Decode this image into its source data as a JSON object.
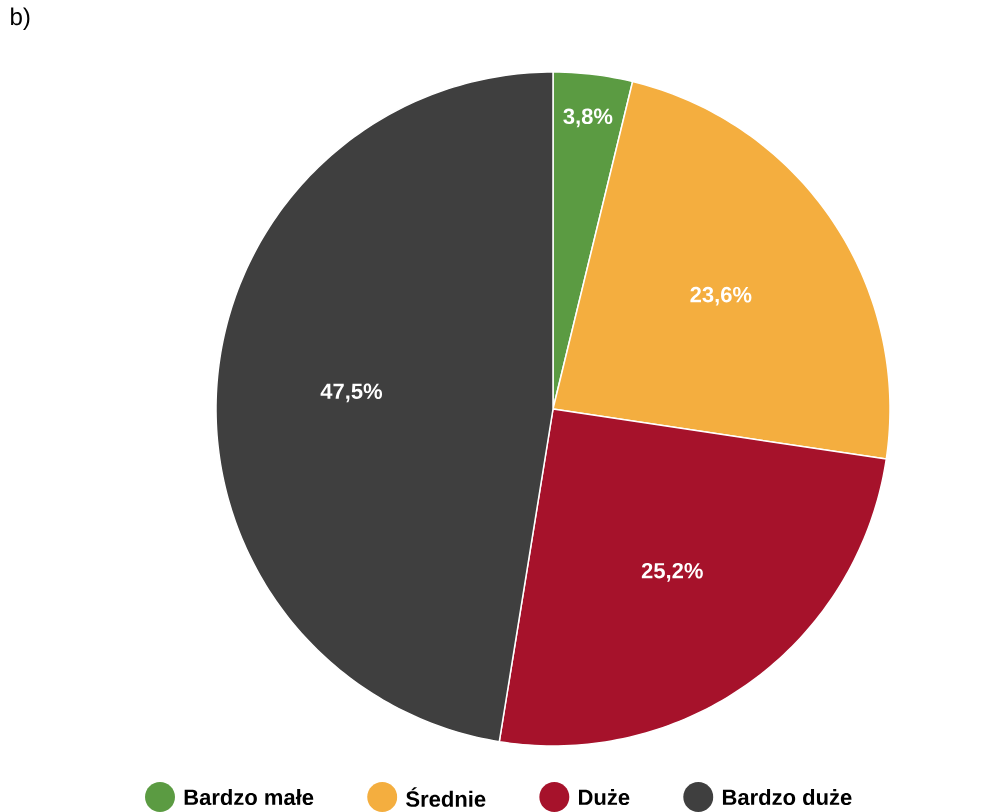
{
  "chart_data": {
    "type": "pie",
    "title": "b)",
    "categories": [
      "Bardzo małe",
      "Średnie",
      "Duże",
      "Bardzo duże"
    ],
    "values": [
      3.8,
      23.6,
      25.2,
      47.5
    ],
    "colors": [
      "#5b9b42",
      "#f4ae3f",
      "#a6122b",
      "#3f3f3f"
    ],
    "value_labels": [
      "3,8%",
      "23,6%",
      "25,2%",
      "47,5%"
    ],
    "legend": "bottom"
  }
}
